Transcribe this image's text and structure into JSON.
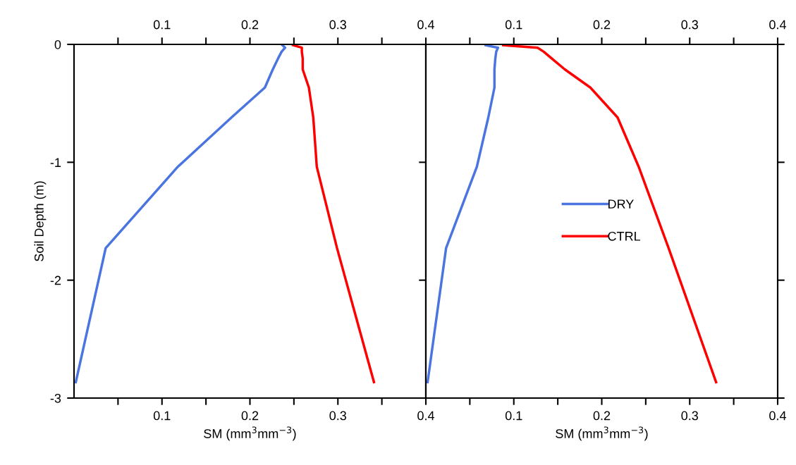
{
  "chart_data": [
    {
      "type": "line",
      "orientation": "horizontal",
      "xlabel": "SM (mm$^{3}$mm$^{−3}$)",
      "ylabel": "Soil Depth (m)",
      "x": [
        -0.007,
        -0.028,
        -0.062,
        -0.119,
        -0.212,
        -0.366,
        -0.62,
        -1.038,
        -1.728,
        -2.865
      ],
      "series": [
        {
          "color": "#4a74e0",
          "values": [
            0.237,
            0.24,
            0.236,
            0.232,
            0.226,
            0.217,
            0.179,
            0.118,
            0.036,
            0.002
          ]
        },
        {
          "color": "#ff0000",
          "values": [
            0.249,
            0.259,
            0.259,
            0.26,
            0.26,
            0.267,
            0.272,
            0.276,
            0.299,
            0.341
          ]
        }
      ],
      "xlim": [
        0,
        0.4
      ],
      "xticks": [
        {
          "value": 0.05,
          "label": null
        },
        0.1,
        {
          "value": 0.15,
          "label": null
        },
        0.2,
        {
          "value": 0.25,
          "label": null
        },
        0.3,
        {
          "value": 0.35,
          "label": null
        },
        0.4
      ],
      "x2lim": [
        0,
        0.4
      ],
      "x2ticks": [
        {
          "value": 0.05,
          "label": null
        },
        0.1,
        {
          "value": 0.15,
          "label": null
        },
        0.2,
        {
          "value": 0.25,
          "label": null
        },
        0.3,
        {
          "value": 0.35,
          "label": null
        },
        0.4
      ],
      "ylim": [
        -3,
        0
      ],
      "yticks": [
        0,
        -1,
        -2,
        -3
      ],
      "grid": false,
      "legend": false
    },
    {
      "type": "line",
      "orientation": "horizontal",
      "xlabel": "SM (mm$^{3}$mm$^{−3}$)",
      "x": [
        -0.007,
        -0.028,
        -0.062,
        -0.119,
        -0.212,
        -0.366,
        -0.62,
        -1.038,
        -1.728,
        -2.865
      ],
      "series": [
        {
          "name": "DRY",
          "color": "#4a74e0",
          "values": [
            0.068,
            0.082,
            0.08,
            0.079,
            0.078,
            0.078,
            0.071,
            0.058,
            0.023,
            0.002
          ]
        },
        {
          "name": "CTRL",
          "color": "#ff0000",
          "values": [
            0.088,
            0.127,
            0.134,
            0.143,
            0.158,
            0.187,
            0.218,
            0.242,
            0.276,
            0.33
          ]
        }
      ],
      "xlim": [
        0,
        0.4
      ],
      "xticks": [
        {
          "value": 0.05,
          "label": null
        },
        0.1,
        {
          "value": 0.15,
          "label": null
        },
        0.2,
        {
          "value": 0.25,
          "label": null
        },
        0.3,
        {
          "value": 0.35,
          "label": null
        },
        0.4
      ],
      "x2lim": [
        0,
        0.4
      ],
      "x2ticks": [
        {
          "value": 0.05,
          "label": null
        },
        0.1,
        {
          "value": 0.15,
          "label": null
        },
        0.2,
        {
          "value": 0.25,
          "label": null
        },
        0.3,
        {
          "value": 0.35,
          "label": null
        },
        0.4
      ],
      "ylim": [
        -3,
        0
      ],
      "yticks": [
        0,
        -1,
        -2,
        -3
      ],
      "tick_labels": "x",
      "grid": false,
      "legend": "center"
    }
  ]
}
